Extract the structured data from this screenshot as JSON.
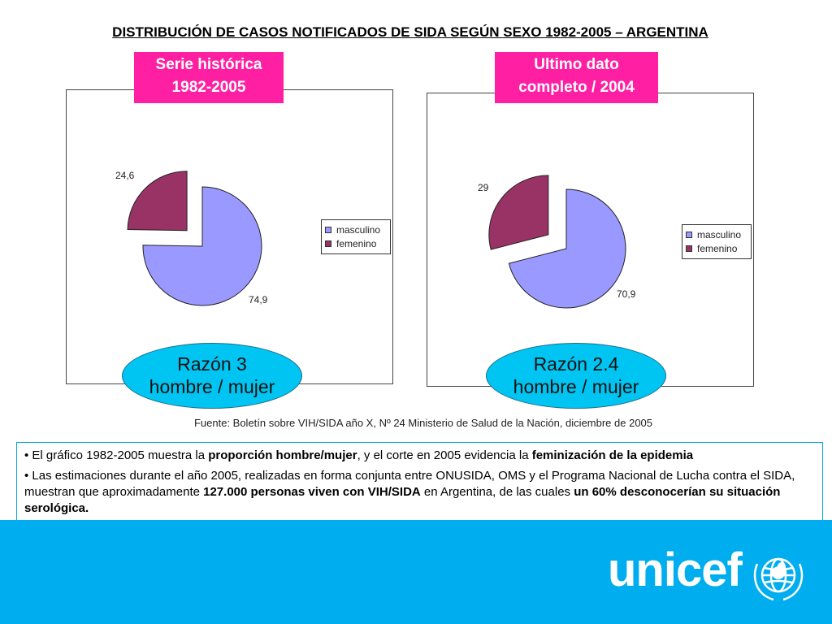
{
  "title": "DISTRIBUCIÓN DE CASOS NOTIFICADOS DE SIDA SEGÚN SEXO 1982-2005 – ARGENTINA",
  "colors": {
    "masculino": "#9999ff",
    "femenino": "#993366",
    "label_bg": "#ff1fa3",
    "oval_bg": "#00c5f2",
    "footer_bg": "#00aeef"
  },
  "chart_data": [
    {
      "type": "pie",
      "header_line1": "Serie histórica",
      "header_line2": "1982-2005",
      "categories": [
        "masculino",
        "femenino"
      ],
      "values": [
        74.9,
        24.6
      ],
      "value_labels": [
        "74,9",
        "24,6"
      ],
      "exploded": "femenino",
      "legend": "right",
      "legend_entries": [
        "masculino",
        "femenino"
      ],
      "ratio_line1": "Razón 3",
      "ratio_line2": "hombre / mujer"
    },
    {
      "type": "pie",
      "header_line1": "Ultimo dato",
      "header_line2": "completo / 2004",
      "categories": [
        "masculino",
        "femenino"
      ],
      "values": [
        70.9,
        29
      ],
      "value_labels": [
        "70,9",
        "29"
      ],
      "exploded": "femenino",
      "legend": "right",
      "legend_entries": [
        "masculino",
        "femenino"
      ],
      "ratio_line1": "Razón 2.4",
      "ratio_line2": "hombre / mujer"
    }
  ],
  "source": "Fuente: Boletín sobre VIH/SIDA año X, Nº 24 Ministerio de Salud de la Nación, diciembre de 2005",
  "notes": {
    "b1_pre": "• El gráfico 1982-2005 muestra la ",
    "b1_bold1": "proporción hombre/mujer",
    "b1_mid": ", y el corte en 2005 evidencia la ",
    "b1_bold2": "feminización de la epidemia",
    "b2_pre": "• Las estimaciones durante el año 2005, realizadas en forma conjunta entre ONUSIDA, OMS y el Programa Nacional de Lucha contra el SIDA, muestran que aproximadamente ",
    "b2_bold1": "127.000 personas viven con VIH/SIDA",
    "b2_mid": " en Argentina, de las cuales ",
    "b2_bold2": "un 60% desconocerían su situación serológica."
  },
  "footer": {
    "logo_text": "unicef",
    "emblem": "unicef-emblem-icon"
  }
}
